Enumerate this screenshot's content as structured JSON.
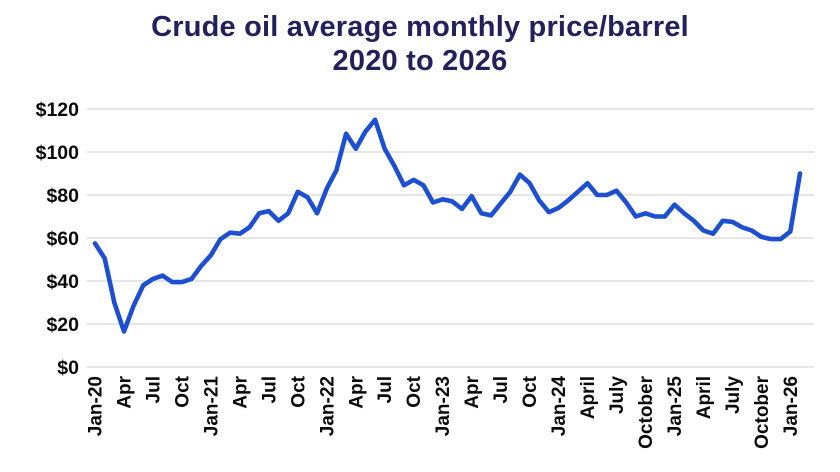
{
  "title": {
    "line1": "Crude oil average monthly price/barrel",
    "line2": "2020 to 2026"
  },
  "chart_data": {
    "type": "line",
    "title": "Crude oil average monthly price/barrel 2020 to 2026",
    "series_name": "Crude oil average monthly price per barrel (USD)",
    "x_start": "Jan-2020",
    "x_end": "Feb-2026",
    "x_tick_every_months": 3,
    "x_tick_labels": [
      "Jan-20",
      "Apr",
      "Jul",
      "Oct",
      "Jan-21",
      "Apr",
      "Jul",
      "Oct",
      "Jan-22",
      "Apr",
      "Jul",
      "Oct",
      "Jan-23",
      "Apr",
      "Jul",
      "Oct",
      "Jan-24",
      "April",
      "July",
      "October",
      "Jan-25",
      "April",
      "July",
      "October",
      "Jan-26"
    ],
    "y_tick_labels": [
      "$0",
      "$20",
      "$40",
      "$60",
      "$80",
      "$100",
      "$120"
    ],
    "ylim": [
      0,
      120
    ],
    "grid": "horizontal",
    "legend": "none",
    "values": [
      57.5,
      50.5,
      30,
      16.5,
      28.5,
      38,
      41,
      42.5,
      39.5,
      39.5,
      41,
      47,
      52,
      59.5,
      62.5,
      62,
      65,
      71.5,
      72.5,
      68,
      71.5,
      81.5,
      79,
      71.5,
      83,
      91.5,
      108.5,
      101.5,
      109.5,
      115,
      101.5,
      93.5,
      84.5,
      87,
      84.5,
      76.5,
      78,
      77,
      73.5,
      79.5,
      71.5,
      70.5,
      76,
      81.5,
      89.5,
      85.5,
      77.5,
      72,
      74,
      77.5,
      81.5,
      85.5,
      80,
      80,
      82,
      76.5,
      70,
      71.5,
      70,
      70,
      75.5,
      71.5,
      68,
      63.5,
      62,
      68,
      67.5,
      65,
      63.5,
      60.5,
      59.5,
      59.5,
      63,
      90
    ]
  },
  "style": {
    "line_color": "#1d4fd1",
    "title_color": "#23215c",
    "axis_label_color": "#0b0b0b",
    "gridline_color": "#d8d8d8",
    "background": "#ffffff"
  }
}
